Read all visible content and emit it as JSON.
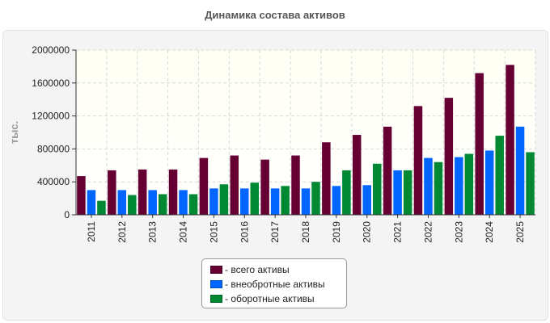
{
  "chart_data": {
    "type": "bar",
    "title": "Динамика состава активов",
    "ylabel": "тыс.",
    "xlabel": "",
    "categories": [
      "2011",
      "2012",
      "2013",
      "2014",
      "2015",
      "2016",
      "2017",
      "2018",
      "2019",
      "2020",
      "2021",
      "2022",
      "2023",
      "2024",
      "2025"
    ],
    "ylim": [
      0,
      2000000
    ],
    "yticks": [
      "0",
      "400000",
      "800000",
      "1200000",
      "1600000",
      "2000000"
    ],
    "grid": true,
    "legend_position": "bottom-center",
    "series": [
      {
        "name": "- всего активы",
        "color": "#660033",
        "values": [
          470000,
          540000,
          550000,
          550000,
          690000,
          720000,
          670000,
          720000,
          880000,
          970000,
          1070000,
          1320000,
          1420000,
          1720000,
          1820000
        ]
      },
      {
        "name": "- внеобротные активы",
        "color": "#0066ff",
        "values": [
          300000,
          300000,
          300000,
          300000,
          320000,
          320000,
          320000,
          320000,
          350000,
          360000,
          540000,
          690000,
          700000,
          780000,
          1070000
        ]
      },
      {
        "name": "- оборотные активы",
        "color": "#008833",
        "values": [
          170000,
          240000,
          250000,
          250000,
          370000,
          390000,
          350000,
          400000,
          540000,
          620000,
          540000,
          640000,
          740000,
          960000,
          760000
        ]
      }
    ]
  }
}
